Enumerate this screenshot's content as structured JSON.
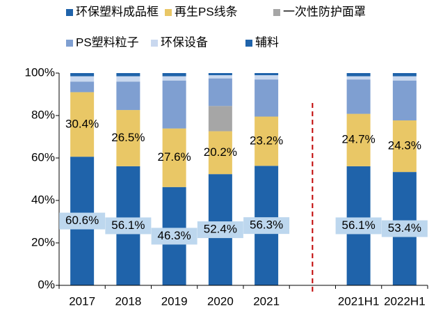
{
  "chart_data": {
    "type": "stacked_bar",
    "categories": [
      "2017",
      "2018",
      "2019",
      "2020",
      "2021",
      null,
      "2021H1",
      "2022H1"
    ],
    "series": [
      {
        "name": "环保塑料成品框",
        "color": "#1f63aa",
        "values": [
          60.6,
          56.1,
          46.3,
          52.4,
          56.3,
          null,
          56.1,
          53.4
        ],
        "value_labels": [
          "60.6%",
          "56.1%",
          "46.3%",
          "52.4%",
          "56.3%",
          null,
          "56.1%",
          "53.4%"
        ]
      },
      {
        "name": "再生PS线条",
        "color": "#e9c766",
        "values": [
          30.4,
          26.5,
          27.6,
          20.2,
          23.2,
          null,
          24.7,
          24.3
        ],
        "value_labels": [
          "30.4%",
          "26.5%",
          "27.6%",
          "20.2%",
          "23.2%",
          null,
          "24.7%",
          "24.3%"
        ]
      },
      {
        "name": "一次性防护面罩",
        "color": "#a6a6a6",
        "values": [
          0,
          0,
          0,
          11.9,
          0,
          null,
          0,
          0
        ]
      },
      {
        "name": "PS塑料粒子",
        "color": "#7f9fd1",
        "values": [
          5.0,
          13.4,
          22.6,
          13.0,
          17.5,
          null,
          16.2,
          18.8
        ]
      },
      {
        "name": "环保设备",
        "color": "#c9d8ef",
        "values": [
          2.5,
          2.5,
          2.0,
          1.5,
          2.0,
          null,
          1.5,
          2.0
        ]
      },
      {
        "name": "辅料",
        "color": "#1f63aa",
        "values": [
          1.5,
          1.5,
          1.5,
          1.0,
          1.0,
          null,
          1.5,
          1.5
        ]
      }
    ],
    "ylim": [
      0,
      100
    ],
    "yticks": [
      {
        "value": 0,
        "label": "0%"
      },
      {
        "value": 20,
        "label": "20%"
      },
      {
        "value": 40,
        "label": "40%"
      },
      {
        "value": 60,
        "label": "60%"
      },
      {
        "value": 80,
        "label": "80%"
      },
      {
        "value": 100,
        "label": "100%"
      }
    ]
  }
}
